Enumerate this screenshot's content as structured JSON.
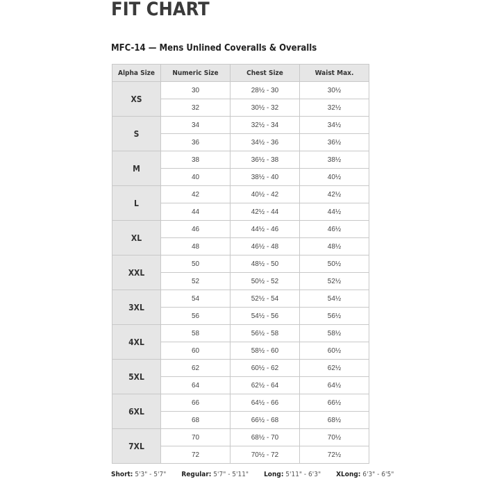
{
  "title": "FIT CHART",
  "subtitle": "MFC-14 — Mens Unlined Coveralls & Overalls",
  "headers": [
    "Alpha Size",
    "Numeric Size",
    "Chest Size",
    "Waist Max."
  ],
  "groups": [
    {
      "alpha": "XS",
      "rows": [
        [
          "30",
          "28½ - 30",
          "30½"
        ],
        [
          "32",
          "30½ - 32",
          "32½"
        ]
      ]
    },
    {
      "alpha": "S",
      "rows": [
        [
          "34",
          "32½ - 34",
          "34½"
        ],
        [
          "36",
          "34½ - 36",
          "36½"
        ]
      ]
    },
    {
      "alpha": "M",
      "rows": [
        [
          "38",
          "36½ - 38",
          "38½"
        ],
        [
          "40",
          "38½ - 40",
          "40½"
        ]
      ]
    },
    {
      "alpha": "L",
      "rows": [
        [
          "42",
          "40½ - 42",
          "42½"
        ],
        [
          "44",
          "42½ - 44",
          "44½"
        ]
      ]
    },
    {
      "alpha": "XL",
      "rows": [
        [
          "46",
          "44½ - 46",
          "46½"
        ],
        [
          "48",
          "46½ - 48",
          "48½"
        ]
      ]
    },
    {
      "alpha": "XXL",
      "rows": [
        [
          "50",
          "48½ - 50",
          "50½"
        ],
        [
          "52",
          "50½ - 52",
          "52½"
        ]
      ]
    },
    {
      "alpha": "3XL",
      "rows": [
        [
          "54",
          "52½ - 54",
          "54½"
        ],
        [
          "56",
          "54½ - 56",
          "56½"
        ]
      ]
    },
    {
      "alpha": "4XL",
      "rows": [
        [
          "58",
          "56½ - 58",
          "58½"
        ],
        [
          "60",
          "58½ - 60",
          "60½"
        ]
      ]
    },
    {
      "alpha": "5XL",
      "rows": [
        [
          "62",
          "60½ - 62",
          "62½"
        ],
        [
          "64",
          "62½ - 64",
          "64½"
        ]
      ]
    },
    {
      "alpha": "6XL",
      "rows": [
        [
          "66",
          "64½ - 66",
          "66½"
        ],
        [
          "68",
          "66½ - 68",
          "68½"
        ]
      ]
    },
    {
      "alpha": "7XL",
      "rows": [
        [
          "70",
          "68½ - 70",
          "70½"
        ],
        [
          "72",
          "70½ - 72",
          "72½"
        ]
      ]
    }
  ],
  "footer": [
    {
      "label": "Short:",
      "value": "5'3\" - 5'7\""
    },
    {
      "label": "Regular:",
      "value": "5'7\" - 5'11\""
    },
    {
      "label": "Long:",
      "value": "5'11\" - 6'3\""
    },
    {
      "label": "XLong:",
      "value": "6'3\" - 6'5\""
    }
  ]
}
